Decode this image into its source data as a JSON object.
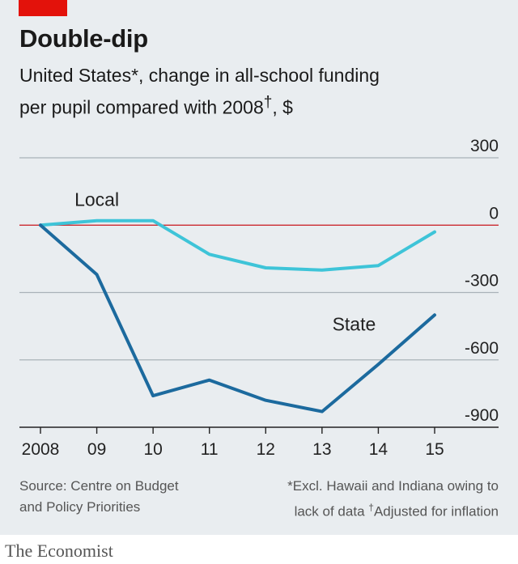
{
  "header": {
    "title": "Double-dip",
    "subtitle_line1": "United States*, change in all-school funding",
    "subtitle_line2": "per pupil compared with 2008",
    "subtitle_dagger": "†",
    "subtitle_unit": ", $"
  },
  "footer": {
    "source_line1": "Source: Centre on Budget",
    "source_line2": "and Policy Priorities",
    "footnote_line1": "*Excl. Hawaii and Indiana owing to",
    "footnote_line2a": "lack of data",
    "footnote_dagger": "†",
    "footnote_line2b": "Adjusted for inflation",
    "brand": "The Economist"
  },
  "colors": {
    "state": "#1c6a9e",
    "local": "#3ec4d8",
    "zero_line": "#c8141b",
    "grid": "#a9b2b8",
    "accent": "#e3120b"
  },
  "chart_data": {
    "type": "line",
    "x": [
      "2008",
      "09",
      "10",
      "11",
      "12",
      "13",
      "14",
      "15"
    ],
    "ylim": [
      -900,
      300
    ],
    "yticks": [
      300,
      0,
      -300,
      -600,
      -900
    ],
    "ytick_labels": [
      "300",
      "0",
      "-300",
      "-600",
      "-900"
    ],
    "grid": true,
    "series": [
      {
        "name": "Local",
        "values": [
          0,
          20,
          20,
          -130,
          -190,
          -200,
          -180,
          -30
        ]
      },
      {
        "name": "State",
        "values": [
          0,
          -220,
          -760,
          -690,
          -780,
          -830,
          -620,
          -400
        ]
      }
    ]
  }
}
